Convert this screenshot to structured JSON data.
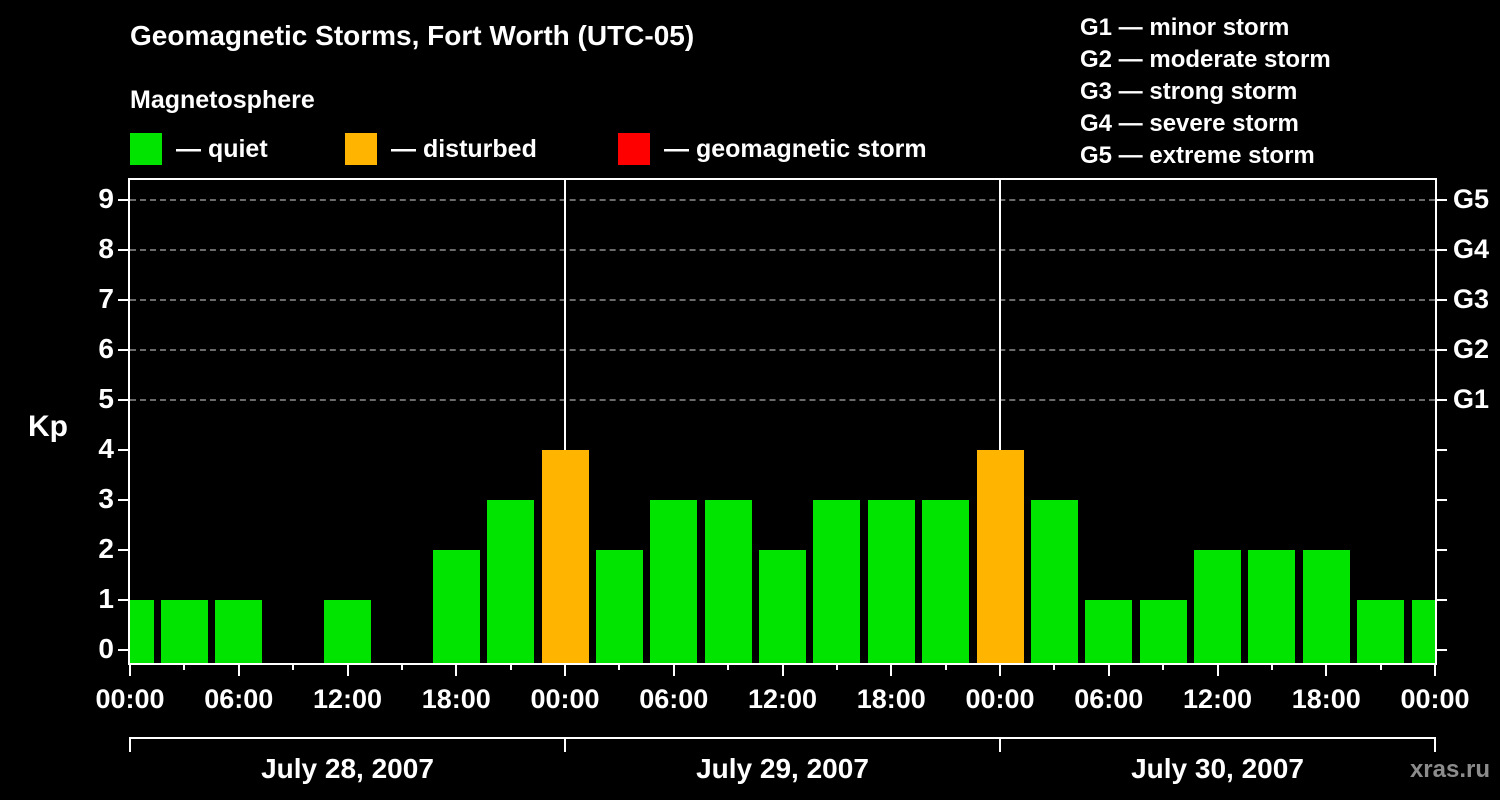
{
  "title": "Geomagnetic Storms, Fort Worth (UTC-05)",
  "subtitle": "Magnetosphere",
  "legend": {
    "quiet": "— quiet",
    "disturbed": "— disturbed",
    "storm": "— geomagnetic storm"
  },
  "g_legend": [
    "G1 — minor storm",
    "G2 — moderate storm",
    "G3 — strong storm",
    "G4 — severe storm",
    "G5 — extreme storm"
  ],
  "watermark": "xras.ru",
  "chart_data": {
    "type": "bar",
    "title": "Geomagnetic Storms, Fort Worth (UTC-05)",
    "subtitle": "Magnetosphere",
    "ylabel": "Kp",
    "ylim": [
      0,
      9.4
    ],
    "grid": "dashed horizontal lines at Kp 5,6,7,8,9",
    "step_hours": 3,
    "kp_values": [
      1,
      1,
      1,
      0,
      1,
      0,
      2,
      3,
      4,
      2,
      3,
      3,
      2,
      3,
      3,
      3,
      4,
      3,
      1,
      1,
      2,
      2,
      2,
      1,
      1
    ],
    "y_ticks": [
      0,
      1,
      2,
      3,
      4,
      5,
      6,
      7,
      8,
      9
    ],
    "x_tick_hours": [
      0,
      6,
      12,
      18,
      24,
      30,
      36,
      42,
      48,
      54,
      60,
      66,
      72
    ],
    "x_tick_labels": [
      "00:00",
      "06:00",
      "12:00",
      "18:00",
      "00:00",
      "06:00",
      "12:00",
      "18:00",
      "00:00",
      "06:00",
      "12:00",
      "18:00",
      "00:00"
    ],
    "day_boundaries_hours": [
      0,
      24,
      48,
      72
    ],
    "day_labels": [
      "July 28, 2007",
      "July 29, 2007",
      "July 30, 2007"
    ],
    "g_scale": [
      {
        "kp": 5,
        "label": "G1"
      },
      {
        "kp": 6,
        "label": "G2"
      },
      {
        "kp": 7,
        "label": "G3"
      },
      {
        "kp": 8,
        "label": "G4"
      },
      {
        "kp": 9,
        "label": "G5"
      }
    ],
    "colors": {
      "quiet": "#00e400",
      "disturbed": "#ffb400",
      "storm": "#ff0000",
      "background": "#000000",
      "text": "#ffffff",
      "grid": "#6b6b6b",
      "watermark": "#8c8c8c"
    }
  }
}
